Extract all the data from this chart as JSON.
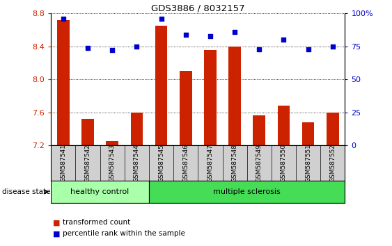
{
  "title": "GDS3886 / 8032157",
  "samples": [
    "GSM587541",
    "GSM587542",
    "GSM587543",
    "GSM587544",
    "GSM587545",
    "GSM587546",
    "GSM587547",
    "GSM587548",
    "GSM587549",
    "GSM587550",
    "GSM587551",
    "GSM587552"
  ],
  "bar_values": [
    8.72,
    7.52,
    7.25,
    7.6,
    8.65,
    8.1,
    8.36,
    8.4,
    7.56,
    7.68,
    7.48,
    7.6
  ],
  "percentile_values": [
    96,
    74,
    72,
    75,
    96,
    84,
    83,
    86,
    73,
    80,
    73,
    75
  ],
  "bar_color": "#cc2200",
  "percentile_color": "#0000cc",
  "ylim_left": [
    7.2,
    8.8
  ],
  "ylim_right": [
    0,
    100
  ],
  "yticks_left": [
    7.2,
    7.6,
    8.0,
    8.4,
    8.8
  ],
  "yticks_right": [
    0,
    25,
    50,
    75,
    100
  ],
  "ytick_labels_right": [
    "0",
    "25",
    "50",
    "75",
    "100%"
  ],
  "group_healthy_label": "healthy control",
  "group_ms_label": "multiple sclerosis",
  "disease_state_label": "disease state",
  "legend_bar_label": "transformed count",
  "legend_percentile_label": "percentile rank within the sample",
  "healthy_color": "#aaffaa",
  "ms_color": "#44dd55",
  "bar_bottom": 7.2,
  "tick_label_color_left": "#cc2200",
  "tick_label_color_right": "#0000cc",
  "label_band_color": "#d0d0d0",
  "n_healthy": 4,
  "n_ms": 8
}
